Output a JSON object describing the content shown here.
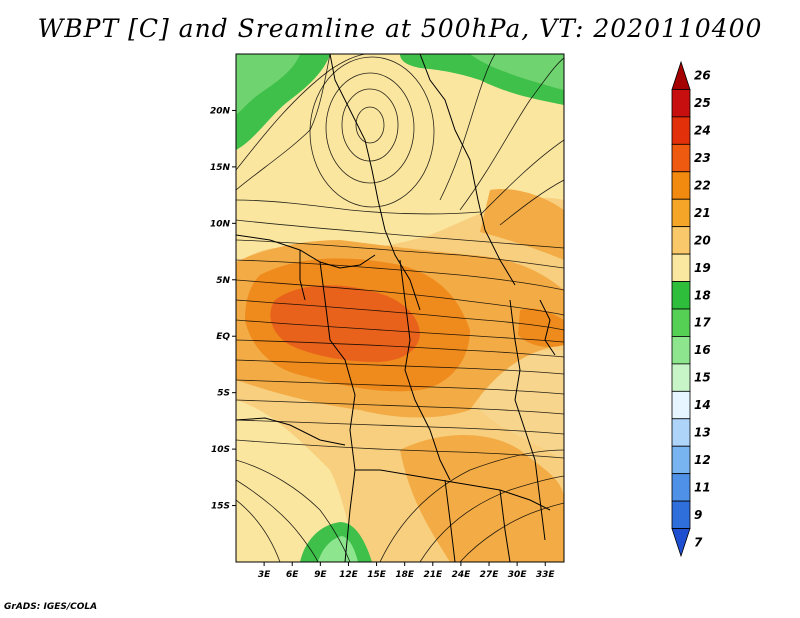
{
  "title": "WBPT [C] and Sreamline at 500hPa, VT: 2020110400",
  "credit": "GrADS: IGES/COLA",
  "map": {
    "lat_labels": [
      "20N",
      "15N",
      "10N",
      "5N",
      "EQ",
      "5S",
      "10S",
      "15S"
    ],
    "lat_values": [
      20,
      15,
      10,
      5,
      0,
      -5,
      -10,
      -15
    ],
    "lon_labels": [
      "3E",
      "6E",
      "9E",
      "12E",
      "15E",
      "18E",
      "21E",
      "24E",
      "27E",
      "30E",
      "33E"
    ],
    "lon_values": [
      3,
      6,
      9,
      12,
      15,
      18,
      21,
      24,
      27,
      30,
      33
    ],
    "lat_range": [
      -20,
      25
    ],
    "lon_range": [
      0,
      35
    ],
    "field": "wet-bulb potential temperature with 500hPa streamlines"
  },
  "colorbar": {
    "labels": [
      "26",
      "25",
      "24",
      "23",
      "22",
      "21",
      "20",
      "19",
      "18",
      "17",
      "16",
      "15",
      "14",
      "13",
      "12",
      "11",
      "9",
      "7"
    ],
    "colors": [
      "#a50000",
      "#c80f0f",
      "#e1300a",
      "#ee5a10",
      "#f28a0f",
      "#f5a628",
      "#f8c86a",
      "#fbe8a0",
      "#2fbd3c",
      "#55d055",
      "#8de68d",
      "#c8f5c8",
      "#e6f5ff",
      "#aed4fa",
      "#78b4f0",
      "#4f91e6",
      "#2f6fdb",
      "#1e4fd0"
    ]
  }
}
